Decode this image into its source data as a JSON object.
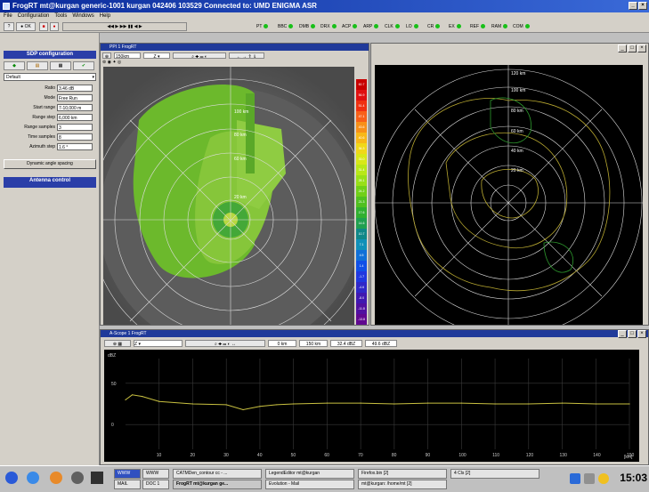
{
  "window": {
    "title": "FrogRT mt@kurgan generic-1001 kurgan 042406 103529 Connected to: UMD ENIGMA ASR"
  },
  "menu": [
    "File",
    "Configuration",
    "Tools",
    "Windows",
    "Help"
  ],
  "toolbar": {
    "status_items": [
      "PT",
      "BBC",
      "DMB",
      "DRX",
      "ACP",
      "ARP",
      "CLK",
      "LO",
      "CR",
      "EX",
      "REF",
      "RAM",
      "COM"
    ],
    "connected_green": "#18c018"
  },
  "left_panel": {
    "header": "SDP configuration",
    "preset": "Default",
    "fields": [
      {
        "label": "Ratio",
        "value": "3.46 dB"
      },
      {
        "label": "Mode",
        "value": "Free Run"
      },
      {
        "label": "Start range",
        "value": "7-10,000 m"
      },
      {
        "label": "Range step",
        "value": "6,000 km"
      },
      {
        "label": "Range samples",
        "value": "3"
      },
      {
        "label": "Time samples",
        "value": "8"
      },
      {
        "label": "Azimuth step",
        "value": "1.6 °"
      }
    ],
    "button": "Dynamic angle spacing",
    "antenna_header": "Antenna control"
  },
  "ppi": {
    "title": "PPI 1 FrogRT",
    "range_select": "150km",
    "range_labels": [
      "100 km",
      "80 km",
      "60 km",
      "20 km"
    ],
    "colorbar_labels": [
      "60.7",
      "56.9",
      "51.4",
      "47.1",
      "43.6",
      "40.6",
      "36.3",
      "33.0",
      "31.4",
      "28.1",
      "24.2",
      "21.3",
      "17.6",
      "14.6",
      "10.7",
      "7.1",
      "4.5",
      "1.4",
      "-1.7",
      "-4.6",
      "-8.0",
      "-11.8",
      "-13.8"
    ]
  },
  "right_radar": {
    "range_labels": [
      "120 km",
      "100 km",
      "80 km",
      "60 km",
      "40 km",
      "20 km"
    ]
  },
  "bottom_plot": {
    "title": "A-Scope 1 FrogRT",
    "toolbar_values": [
      "0 km",
      "150 km",
      "32.4 dBZ",
      "49.6 dBZ"
    ],
    "y_unit": "dBZ",
    "y_ticks": [
      "50",
      "0"
    ],
    "x_ticks": [
      "10",
      "20",
      "30",
      "40",
      "50",
      "60",
      "70",
      "80",
      "90",
      "100",
      "110",
      "120",
      "130",
      "140",
      "150"
    ],
    "x_unit": "[km]"
  },
  "chart_data": {
    "type": "line",
    "title": "",
    "xlabel": "[km]",
    "ylabel": "dBZ",
    "x": [
      0,
      2,
      5,
      10,
      20,
      30,
      35,
      40,
      45,
      50,
      60,
      70,
      80,
      90,
      100,
      110,
      120,
      130,
      140,
      150
    ],
    "series": [
      {
        "values": [
          30,
          36,
          34,
          28,
          25,
          24,
          18,
          22,
          24,
          25,
          26,
          26,
          25,
          26,
          26,
          25,
          25,
          26,
          25,
          25
        ]
      }
    ],
    "xlim": [
      0,
      150
    ],
    "ylim": [
      -30,
      80
    ],
    "grid": true
  },
  "taskbar": {
    "tasks_top": [
      "CATMDen_contour cc - ...",
      "LegendEditor mt@kurgan",
      "Firefox.bin [2]",
      "4 Cls [2]"
    ],
    "tasks_bottom": [
      "FrogRT mt@kurgan ge...",
      "Evolution - Mail",
      "mt@kurgan: /home/mt [2]"
    ],
    "workspaces": [
      "WWW",
      "WWW",
      "MAIL",
      "DOC 1"
    ],
    "clock": "15:03"
  }
}
